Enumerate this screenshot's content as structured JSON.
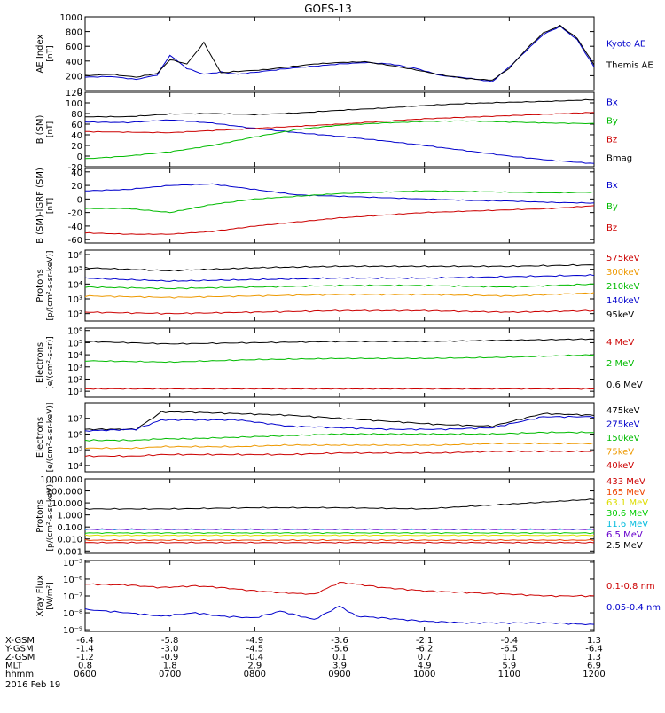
{
  "title": "GOES-13",
  "date": "2016 Feb 19",
  "footer": {
    "rows": [
      {
        "label": "X-GSM",
        "values": [
          "-6.4",
          "-5.8",
          "-4.9",
          "-3.6",
          "-2.1",
          "-0.4",
          "1.3"
        ]
      },
      {
        "label": "Y-GSM",
        "values": [
          "-1.4",
          "-3.0",
          "-4.5",
          "-5.6",
          "-6.2",
          "-6.5",
          "-6.4"
        ]
      },
      {
        "label": "Z-GSM",
        "values": [
          "-1.2",
          "-0.9",
          "-0.4",
          "0.1",
          "0.7",
          "1.1",
          "1.3"
        ]
      },
      {
        "label": "MLT",
        "values": [
          "0.8",
          "1.8",
          "2.9",
          "3.9",
          "4.9",
          "5.9",
          "6.9"
        ]
      },
      {
        "label": "hhmm",
        "values": [
          "0600",
          "0700",
          "0800",
          "0900",
          "1000",
          "1100",
          "1200"
        ]
      }
    ]
  },
  "chart_data": [
    {
      "type": "line",
      "ylabel": [
        "AE Index",
        "[nT]"
      ],
      "scale": "linear",
      "ylim": [
        0,
        1000
      ],
      "ticks": [
        "0",
        "200",
        "400",
        "600",
        "800",
        "1000"
      ],
      "tickvals": [
        0,
        200,
        400,
        600,
        800,
        1000
      ],
      "x": [
        0,
        0.3,
        0.6,
        0.85,
        1.0,
        1.2,
        1.4,
        1.6,
        1.8,
        2.1,
        2.4,
        2.7,
        3.0,
        3.3,
        3.6,
        3.9,
        4.2,
        4.5,
        4.8,
        5.0,
        5.2,
        5.4,
        5.6,
        5.8,
        6.0
      ],
      "series": [
        {
          "name": "Kyoto AE",
          "color": "#0000cc",
          "values": [
            180,
            190,
            150,
            210,
            480,
            300,
            220,
            250,
            220,
            260,
            300,
            330,
            360,
            380,
            360,
            300,
            200,
            170,
            120,
            320,
            540,
            760,
            870,
            690,
            320
          ]
        },
        {
          "name": "Themis AE",
          "color": "#000000",
          "values": [
            200,
            220,
            180,
            230,
            420,
            360,
            650,
            240,
            260,
            280,
            320,
            360,
            380,
            390,
            340,
            280,
            210,
            160,
            140,
            300,
            560,
            780,
            880,
            710,
            350
          ]
        }
      ]
    },
    {
      "type": "line",
      "ylabel": [
        "B (SM)",
        "[nT]"
      ],
      "scale": "linear",
      "ylim": [
        -20,
        120
      ],
      "ticks": [
        "-20",
        "0",
        "20",
        "40",
        "60",
        "80",
        "100",
        "120"
      ],
      "tickvals": [
        -20,
        0,
        20,
        40,
        60,
        80,
        100,
        120
      ],
      "x": [
        0,
        0.5,
        1.0,
        1.5,
        2.0,
        2.5,
        3.0,
        3.5,
        4.0,
        4.5,
        5.0,
        5.5,
        6.0
      ],
      "series": [
        {
          "name": "Bx",
          "color": "#0000cc",
          "values": [
            64,
            63,
            68,
            62,
            52,
            44,
            37,
            29,
            20,
            10,
            0,
            -8,
            -14
          ]
        },
        {
          "name": "By",
          "color": "#00bb00",
          "values": [
            -5,
            0,
            8,
            20,
            36,
            50,
            58,
            62,
            65,
            66,
            64,
            62,
            61
          ]
        },
        {
          "name": "Bz",
          "color": "#cc0000",
          "values": [
            46,
            45,
            44,
            48,
            52,
            56,
            60,
            65,
            70,
            73,
            76,
            79,
            82
          ]
        },
        {
          "name": "Bmag",
          "color": "#000000",
          "values": [
            74,
            74,
            79,
            80,
            78,
            81,
            86,
            90,
            95,
            99,
            101,
            103,
            106
          ]
        }
      ]
    },
    {
      "type": "line",
      "ylabel": [
        "B (SM)-IGRF (SM)",
        "[nT]"
      ],
      "scale": "linear",
      "ylim": [
        -65,
        45
      ],
      "ticks": [
        "-60",
        "-40",
        "-20",
        "0",
        "20",
        "40"
      ],
      "tickvals": [
        -60,
        -40,
        -20,
        0,
        20,
        40
      ],
      "x": [
        0,
        0.5,
        1.0,
        1.5,
        2.0,
        2.5,
        3.0,
        3.5,
        4.0,
        4.5,
        5.0,
        5.5,
        6.0
      ],
      "series": [
        {
          "name": "Bx",
          "color": "#0000cc",
          "values": [
            12,
            14,
            20,
            22,
            14,
            6,
            4,
            2,
            0,
            -2,
            -3,
            -5,
            -6
          ]
        },
        {
          "name": "By",
          "color": "#00bb00",
          "values": [
            -14,
            -14,
            -20,
            -8,
            0,
            4,
            8,
            10,
            12,
            11,
            10,
            9,
            10
          ]
        },
        {
          "name": "Bz",
          "color": "#cc0000",
          "values": [
            -50,
            -52,
            -52,
            -48,
            -40,
            -34,
            -28,
            -24,
            -20,
            -18,
            -16,
            -14,
            -10
          ]
        }
      ]
    },
    {
      "type": "line",
      "ylabel": [
        "Protons",
        "[p/(cm²-s-sr-keV)]"
      ],
      "scale": "log",
      "ylim": [
        1.5,
        6.3
      ],
      "ticks": [
        "10²",
        "10³",
        "10⁴",
        "10⁵",
        "10⁶"
      ],
      "tickvals": [
        2,
        3,
        4,
        5,
        6
      ],
      "x": [
        0,
        1,
        2,
        3,
        4,
        5,
        6
      ],
      "series": [
        {
          "name": "575keV",
          "color": "#cc0000",
          "values": [
            2.1,
            2.0,
            2.1,
            2.2,
            2.2,
            2.1,
            2.2
          ]
        },
        {
          "name": "300keV",
          "color": "#ee9900",
          "values": [
            3.2,
            3.1,
            3.2,
            3.3,
            3.3,
            3.2,
            3.4
          ]
        },
        {
          "name": "210keV",
          "color": "#00bb00",
          "values": [
            3.8,
            3.7,
            3.8,
            3.9,
            3.9,
            3.8,
            4.0
          ]
        },
        {
          "name": "140keV",
          "color": "#0000cc",
          "values": [
            4.4,
            4.2,
            4.3,
            4.4,
            4.4,
            4.5,
            4.6
          ]
        },
        {
          "name": "95keV",
          "color": "#000000",
          "values": [
            5.1,
            4.9,
            5.1,
            5.2,
            5.2,
            5.2,
            5.3
          ]
        }
      ]
    },
    {
      "type": "line",
      "ylabel": [
        "Electrons",
        "[e/(cm²-s-sr)]"
      ],
      "scale": "log",
      "ylim": [
        0.5,
        6.2
      ],
      "ticks": [
        "10¹",
        "10²",
        "10³",
        "10⁴",
        "10⁵",
        "10⁶"
      ],
      "tickvals": [
        1,
        2,
        3,
        4,
        5,
        6
      ],
      "x": [
        0,
        1,
        2,
        3,
        4,
        5,
        6
      ],
      "series": [
        {
          "name": "4 MeV",
          "color": "#cc0000",
          "values": [
            1.2,
            1.2,
            1.2,
            1.2,
            1.2,
            1.2,
            1.2
          ]
        },
        {
          "name": "2 MeV",
          "color": "#00bb00",
          "values": [
            3.5,
            3.4,
            3.6,
            3.7,
            3.7,
            3.8,
            4.0
          ]
        },
        {
          "name": "0.6 MeV",
          "color": "#000000",
          "values": [
            5.1,
            4.9,
            5.0,
            5.1,
            5.1,
            5.2,
            5.3
          ]
        }
      ]
    },
    {
      "type": "line",
      "ylabel": [
        "Electrons",
        "[e/(cm²-s-sr-keV)]"
      ],
      "scale": "log",
      "ylim": [
        3.6,
        8.0
      ],
      "ticks": [
        "10⁴",
        "10⁵",
        "10⁶",
        "10⁷"
      ],
      "tickvals": [
        4,
        5,
        6,
        7
      ],
      "x": [
        0,
        0.6,
        0.9,
        1.2,
        1.8,
        2.4,
        3.0,
        3.6,
        4.2,
        4.8,
        5.4,
        6.0
      ],
      "series": [
        {
          "name": "475keV",
          "color": "#000000",
          "values": [
            6.3,
            6.3,
            7.4,
            7.4,
            7.3,
            7.2,
            7.0,
            6.8,
            6.6,
            6.5,
            7.3,
            7.2
          ]
        },
        {
          "name": "275keV",
          "color": "#0000cc",
          "values": [
            6.2,
            6.3,
            6.9,
            6.9,
            6.9,
            6.5,
            6.4,
            6.3,
            6.3,
            6.4,
            7.1,
            7.1
          ]
        },
        {
          "name": "150keV",
          "color": "#00bb00",
          "values": [
            5.6,
            5.6,
            5.7,
            5.7,
            5.8,
            5.9,
            6.0,
            6.0,
            6.0,
            6.0,
            6.1,
            6.1
          ]
        },
        {
          "name": "75keV",
          "color": "#ee9900",
          "values": [
            5.1,
            5.1,
            5.2,
            5.2,
            5.2,
            5.3,
            5.3,
            5.3,
            5.3,
            5.4,
            5.4,
            5.4
          ]
        },
        {
          "name": "40keV",
          "color": "#cc0000",
          "values": [
            4.6,
            4.6,
            4.7,
            4.7,
            4.7,
            4.7,
            4.8,
            4.8,
            4.8,
            4.9,
            4.9,
            4.9
          ]
        }
      ]
    },
    {
      "type": "line",
      "ylabel": [
        "Protons",
        "[p/(cm²-s-sr-keV)]"
      ],
      "scale": "log",
      "ylim": [
        -3.2,
        3.0
      ],
      "ticks": [
        "0.001",
        "0.010",
        "0.100",
        "1.000",
        "10.000",
        "100.000",
        "1000.000"
      ],
      "tickvals": [
        -3,
        -2,
        -1,
        0,
        1,
        2,
        3
      ],
      "x": [
        0,
        1,
        2,
        3,
        4,
        5,
        6
      ],
      "series": [
        {
          "name": "433 MeV",
          "color": "#cc0000",
          "values": [
            -2.3,
            -2.3,
            -2.3,
            -2.3,
            -2.3,
            -2.3,
            -2.3
          ]
        },
        {
          "name": "165 MeV",
          "color": "#ee4400",
          "values": [
            -2.1,
            -2.1,
            -2.1,
            -2.1,
            -2.1,
            -2.1,
            -2.1
          ]
        },
        {
          "name": "63.1 MeV",
          "color": "#dddd00",
          "values": [
            -1.7,
            -1.7,
            -1.7,
            -1.7,
            -1.7,
            -1.7,
            -1.7
          ]
        },
        {
          "name": "30.6 MeV",
          "color": "#00cc00",
          "values": [
            -1.5,
            -1.5,
            -1.5,
            -1.5,
            -1.5,
            -1.5,
            -1.5
          ]
        },
        {
          "name": "11.6 MeV",
          "color": "#00bbdd",
          "values": [
            -1.2,
            -1.2,
            -1.2,
            -1.2,
            -1.2,
            -1.2,
            -1.2
          ]
        },
        {
          "name": "6.5 MeV",
          "color": "#6600cc",
          "values": [
            -1.2,
            -1.2,
            -1.2,
            -1.2,
            -1.2,
            -1.2,
            -1.2
          ]
        },
        {
          "name": "2.5 MeV",
          "color": "#000000",
          "values": [
            0.5,
            0.5,
            0.6,
            0.6,
            0.5,
            0.9,
            1.3
          ]
        }
      ]
    },
    {
      "type": "line",
      "ylabel": [
        "Xray Flux",
        "[W/m²]"
      ],
      "scale": "log",
      "ylim": [
        -9.1,
        -4.9
      ],
      "ticks": [
        "10⁻⁹",
        "10⁻⁸",
        "10⁻⁷",
        "10⁻⁶",
        "10⁻⁵"
      ],
      "tickvals": [
        -9,
        -8,
        -7,
        -6,
        -5
      ],
      "x": [
        0,
        0.5,
        0.9,
        1.3,
        1.6,
        2.0,
        2.3,
        2.7,
        3.0,
        3.2,
        3.5,
        4.0,
        4.5,
        5.0,
        5.5,
        6.0
      ],
      "series": [
        {
          "name": "0.1-0.8 nm",
          "color": "#cc0000",
          "values": [
            -6.3,
            -6.35,
            -6.5,
            -6.4,
            -6.5,
            -6.7,
            -6.8,
            -6.9,
            -6.2,
            -6.3,
            -6.5,
            -6.7,
            -6.8,
            -6.9,
            -7.0,
            -7.0
          ]
        },
        {
          "name": "0.05-0.4 nm",
          "color": "#0000cc",
          "values": [
            -7.8,
            -8.0,
            -8.2,
            -8.0,
            -8.2,
            -8.3,
            -7.9,
            -8.4,
            -7.6,
            -8.2,
            -8.3,
            -8.5,
            -8.6,
            -8.6,
            -8.6,
            -8.7
          ]
        }
      ]
    }
  ]
}
